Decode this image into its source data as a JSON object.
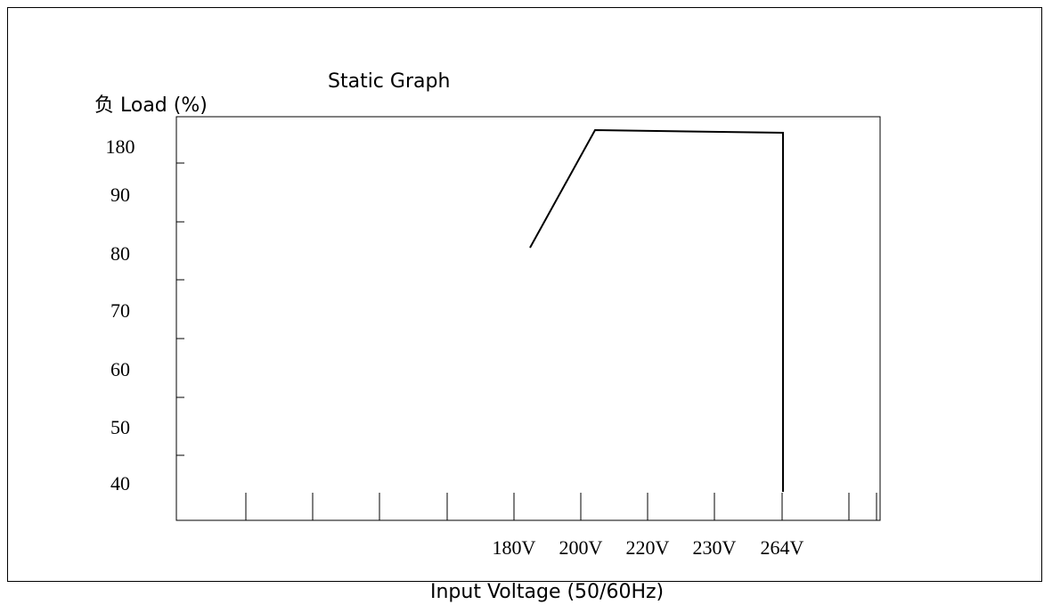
{
  "chart_data": {
    "type": "line",
    "title": "Static Graph",
    "ylabel": "负 Load (%)",
    "xlabel": "Input Voltage (50/60Hz)",
    "y_ticks": [
      "180",
      "90",
      "80",
      "70",
      "60",
      "50",
      "40"
    ],
    "x_ticks": [
      "180V",
      "200V",
      "220V",
      "230V",
      "264V"
    ],
    "series": [
      {
        "points": [
          {
            "x": "180V",
            "y": "80"
          },
          {
            "x": "200V",
            "y": "180"
          },
          {
            "x": "264V",
            "y": "180"
          },
          {
            "x": "264V",
            "y": "40"
          }
        ]
      }
    ],
    "grid": false,
    "legend": "none"
  },
  "colors": {
    "line": "#000000",
    "axes": "#000000",
    "background": "#ffffff"
  }
}
